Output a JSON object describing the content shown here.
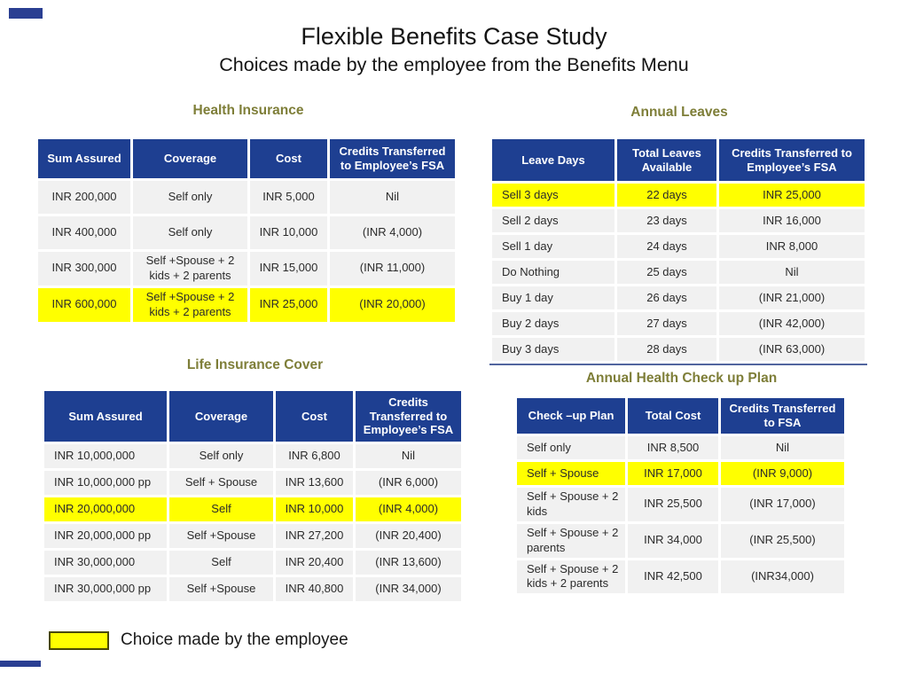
{
  "slide": {
    "title": "Flexible Benefits Case Study",
    "subtitle": "Choices made by the employee from the Benefits Menu"
  },
  "colors": {
    "header_blue": "#1E3F91",
    "section_title_olive": "#7E7E38",
    "highlight_yellow": "#FFFF00",
    "row_gray": "#F1F1F1"
  },
  "tables": {
    "health": {
      "title": "Health Insurance",
      "headers": [
        "Sum Assured",
        "Coverage",
        "Cost",
        "Credits Transferred to Employee’s FSA"
      ],
      "rows": [
        [
          "INR 200,000",
          "Self only",
          "INR 5,000",
          "Nil"
        ],
        [
          "INR 400,000",
          "Self only",
          "INR 10,000",
          "(INR 4,000)"
        ],
        [
          "INR 300,000",
          "Self +Spouse + 2 kids + 2 parents",
          "INR 15,000",
          "(INR 11,000)"
        ],
        [
          "INR 600,000",
          "Self +Spouse + 2 kids + 2 parents",
          "INR 25,000",
          "(INR 20,000)"
        ]
      ],
      "highlight_row": 3
    },
    "leaves": {
      "title": "Annual Leaves",
      "headers": [
        "Leave Days",
        "Total Leaves Available",
        "Credits Transferred to Employee’s FSA"
      ],
      "rows": [
        [
          "Sell 3 days",
          "22 days",
          "INR 25,000"
        ],
        [
          "Sell 2 days",
          "23 days",
          "INR 16,000"
        ],
        [
          "Sell 1 day",
          "24 days",
          "INR 8,000"
        ],
        [
          "Do Nothing",
          "25 days",
          "Nil"
        ],
        [
          "Buy 1 day",
          "26 days",
          "(INR 21,000)"
        ],
        [
          "Buy 2 days",
          "27 days",
          "(INR 42,000)"
        ],
        [
          "Buy 3 days",
          "28 days",
          "(INR 63,000)"
        ]
      ],
      "highlight_row": 0
    },
    "life": {
      "title": "Life Insurance Cover",
      "headers": [
        "Sum Assured",
        "Coverage",
        "Cost",
        "Credits Transferred to Employee’s FSA"
      ],
      "rows": [
        [
          "INR 10,000,000",
          "Self only",
          "INR 6,800",
          "Nil"
        ],
        [
          "INR 10,000,000 pp",
          "Self + Spouse",
          "INR 13,600",
          "(INR 6,000)"
        ],
        [
          "INR 20,000,000",
          "Self",
          "INR 10,000",
          "(INR 4,000)"
        ],
        [
          "INR 20,000,000 pp",
          "Self +Spouse",
          "INR 27,200",
          "(INR 20,400)"
        ],
        [
          "INR 30,000,000",
          "Self",
          "INR 20,400",
          "(INR 13,600)"
        ],
        [
          "INR 30,000,000 pp",
          "Self +Spouse",
          "INR 40,800",
          "(INR 34,000)"
        ]
      ],
      "highlight_row": 2
    },
    "checkup": {
      "title": "Annual Health Check up Plan",
      "headers": [
        "Check –up Plan",
        "Total Cost",
        "Credits Transferred to FSA"
      ],
      "rows": [
        [
          "Self only",
          "INR 8,500",
          "Nil"
        ],
        [
          "Self + Spouse",
          "INR 17,000",
          "(INR 9,000)"
        ],
        [
          "Self + Spouse + 2 kids",
          "INR 25,500",
          "(INR 17,000)"
        ],
        [
          "Self + Spouse + 2 parents",
          "INR 34,000",
          "(INR 25,500)"
        ],
        [
          "Self + Spouse + 2 kids + 2 parents",
          "INR 42,500",
          "(INR34,000)"
        ]
      ],
      "highlight_row": 1
    }
  },
  "legend": {
    "label": "Choice made by the employee"
  }
}
